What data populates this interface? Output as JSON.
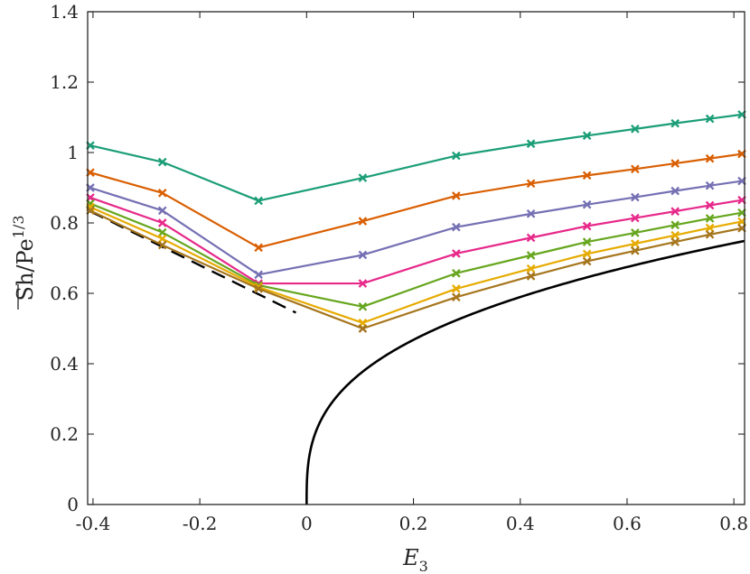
{
  "chart_data": {
    "type": "line",
    "title": "",
    "xlabel_main": "E",
    "xlabel_sub": "3",
    "ylabel_main": "Sh/Pe",
    "ylabel_sup": "1/3",
    "xlim": [
      -0.41,
      0.82
    ],
    "ylim": [
      0,
      1.4
    ],
    "x_ticks": [
      -0.4,
      -0.2,
      0,
      0.2,
      0.4,
      0.6,
      0.8
    ],
    "x_tick_labels": [
      "-0.4",
      "-0.2",
      "0",
      "0.2",
      "0.4",
      "0.6",
      "0.8"
    ],
    "y_ticks": [
      0,
      0.2,
      0.4,
      0.6,
      0.8,
      1,
      1.2,
      1.4
    ],
    "y_tick_labels": [
      "0",
      "0.2",
      "0.4",
      "0.6",
      "0.8",
      "1",
      "1.2",
      "1.4"
    ],
    "x": [
      -0.405,
      -0.27,
      -0.09,
      0.105,
      0.28,
      0.42,
      0.525,
      0.615,
      0.69,
      0.755,
      0.815
    ],
    "series": [
      {
        "name": "series-1",
        "color": "#1b9e77",
        "values": [
          1.02,
          0.973,
          0.863,
          0.928,
          0.991,
          1.025,
          1.048,
          1.067,
          1.083,
          1.096,
          1.108
        ]
      },
      {
        "name": "series-2",
        "color": "#d95f02",
        "values": [
          0.943,
          0.885,
          0.73,
          0.805,
          0.877,
          0.912,
          0.935,
          0.953,
          0.969,
          0.983,
          0.996
        ]
      },
      {
        "name": "series-3",
        "color": "#7570b3",
        "values": [
          0.9,
          0.835,
          0.653,
          0.709,
          0.788,
          0.826,
          0.852,
          0.873,
          0.891,
          0.906,
          0.919
        ]
      },
      {
        "name": "series-4",
        "color": "#e7298a",
        "values": [
          0.872,
          0.8,
          0.628,
          0.628,
          0.713,
          0.758,
          0.791,
          0.814,
          0.833,
          0.85,
          0.865
        ]
      },
      {
        "name": "series-5",
        "color": "#66a61e",
        "values": [
          0.855,
          0.773,
          0.623,
          0.562,
          0.657,
          0.708,
          0.746,
          0.772,
          0.794,
          0.813,
          0.829
        ]
      },
      {
        "name": "series-6",
        "color": "#e6ab02",
        "values": [
          0.845,
          0.755,
          0.618,
          0.516,
          0.613,
          0.67,
          0.712,
          0.741,
          0.765,
          0.786,
          0.804
        ]
      },
      {
        "name": "series-7",
        "color": "#a6761d",
        "values": [
          0.835,
          0.737,
          0.613,
          0.5,
          0.589,
          0.649,
          0.691,
          0.721,
          0.746,
          0.767,
          0.785
        ]
      }
    ],
    "dashed_line": {
      "name": "asymptote-negative",
      "color": "#000000",
      "x": [
        -0.405,
        -0.02
      ],
      "y": [
        0.833,
        0.545
      ]
    },
    "solid_curve": {
      "name": "asymptote-positive",
      "color": "#000000",
      "formula": "0.8 * x^(1/3)",
      "x_start": 0,
      "x_end": 0.82
    }
  }
}
